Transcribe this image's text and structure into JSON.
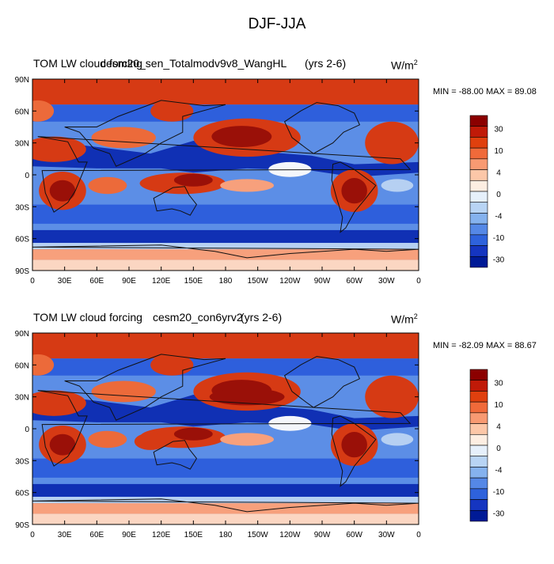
{
  "figure": {
    "title": "DJF-JJA",
    "panels": [
      {
        "variable_label": "TOM LW cloud forcing",
        "case_label": "cesm20_sen_Totalmodv9v8_WangHL",
        "years_label": "(yrs 2-6)",
        "units": "W/m",
        "units_exp": "2",
        "min_max": "MIN = -88.00 MAX = 89.08"
      },
      {
        "variable_label": "TOM LW cloud forcing",
        "case_label": "cesm20_con6yrv2",
        "years_label": "(yrs 2-6)",
        "units": "W/m",
        "units_exp": "2",
        "min_max": "MIN = -82.09 MAX = 88.67"
      }
    ],
    "lat_ticks": [
      "90N",
      "60N",
      "30N",
      "0",
      "30S",
      "60S",
      "90S"
    ],
    "lon_ticks": [
      "0",
      "30E",
      "60E",
      "90E",
      "120E",
      "150E",
      "180",
      "150W",
      "120W",
      "90W",
      "60W",
      "30W",
      "0"
    ],
    "colorbar": {
      "levels": [
        "30",
        "10",
        "4",
        "0",
        "-4",
        "-10",
        "-30"
      ],
      "colors": [
        "#8b0000",
        "#c01a08",
        "#e0400e",
        "#f06a3a",
        "#f89a72",
        "#fcc7a8",
        "#fdeee2",
        "#e6f0fb",
        "#b8d4f4",
        "#85b2ee",
        "#5588e6",
        "#2e62dc",
        "#1535c0",
        "#001a96"
      ]
    },
    "map_colors": {
      "deep_red": "#9a1008",
      "red": "#d63a14",
      "orange": "#ec6a3a",
      "salmon": "#f7a07c",
      "pale": "#fbd6c2",
      "white": "#f4f6fb",
      "light_blue": "#b6d0f2",
      "mid_blue": "#5c8ee6",
      "blue": "#2e5fdc",
      "navy": "#1030b4",
      "coast": "#111111"
    }
  }
}
